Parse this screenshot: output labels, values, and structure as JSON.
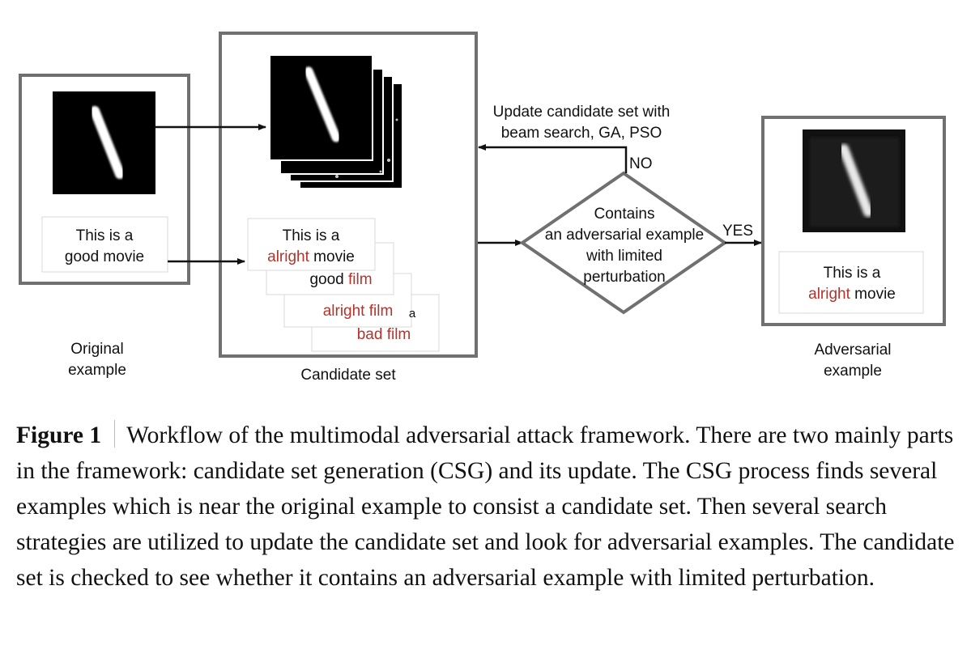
{
  "diagram": {
    "original": {
      "sentence_line1": "This is a",
      "sentence_line2": "good movie",
      "label_line1": "Original",
      "label_line2": "example"
    },
    "candidate": {
      "sentence_line1": "This is a",
      "sentence_word": "alright",
      "sentence_rest": " movie",
      "card2_text": "good film",
      "card3_text": "alright film",
      "card4_text": "bad film",
      "label": "Candidate set"
    },
    "update": {
      "line1": "Update candidate set with",
      "line2": "beam search, GA, PSO",
      "no_label": "NO"
    },
    "decision": {
      "line1": "Contains",
      "line2": "an adversarial example",
      "line3": "with limited",
      "line4": "perturbation",
      "yes_label": "YES"
    },
    "adversarial": {
      "sentence_line1": "This is a",
      "sentence_word": "alright",
      "sentence_rest": " movie",
      "label_line1": "Adversarial",
      "label_line2": "example"
    }
  },
  "caption": {
    "label": "Figure 1",
    "text": "Workflow of the multimodal adversarial attack framework. There are two mainly parts in the framework: candidate set generation (CSG) and its update. The CSG process finds several examples which is near the original example to consist a candidate set. Then several search strategies are utilized to update the candidate set and look for adversarial examples. The candidate set is checked to see whether it contains an adversarial example with limited perturbation."
  },
  "colors": {
    "border": "#707070",
    "red": "#b5332c",
    "arrow": "#111111"
  }
}
